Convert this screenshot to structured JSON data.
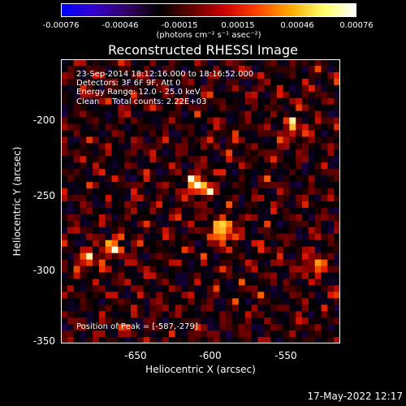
{
  "colorbar": {
    "ticks": [
      "-0.00076",
      "-0.00046",
      "-0.00015",
      "0.00015",
      "0.00046",
      "0.00076"
    ],
    "units": "(photons cm⁻² s⁻¹ asec⁻²)",
    "colors": [
      "#0000ff",
      "#3300cc",
      "#330066",
      "#000000",
      "#660000",
      "#cc0000",
      "#ff4400",
      "#ffaa00",
      "#ffff66",
      "#ffffff"
    ]
  },
  "info": {
    "line1": "23-Sep-2014 18:12:16.000 to 18:16:52.000",
    "line2": "Detectors: 3F 6F 9F, Att 0",
    "line3": "Energy Range: 12.0 - 25.0 keV",
    "line4": "Clean     Total counts: 2.22E+03"
  },
  "peak_label": "Position of Peak = [-587,-279]",
  "timestamp": "17-May-2022 12:17",
  "chart_data": {
    "type": "heatmap",
    "title": "Reconstructed RHESSI Image",
    "xlabel": "Heliocentric X (arcsec)",
    "ylabel": "Heliocentric Y (arcsec)",
    "xlim": [
      -695,
      -510
    ],
    "ylim": [
      -352,
      -165
    ],
    "x_ticks": [
      "-650",
      "-600",
      "-550"
    ],
    "x_tick_values": [
      -650,
      -600,
      -550
    ],
    "y_ticks": [
      "-200",
      "-250",
      "-300",
      "-350"
    ],
    "y_tick_values": [
      -200,
      -250,
      -300,
      -350
    ],
    "value_range": [
      -0.00076,
      0.00076
    ],
    "colormap": "blue-black-red-yellow-white",
    "peak_position": [
      -587,
      -279
    ],
    "bright_sources": [
      {
        "x": -587,
        "y": -279,
        "value": 0.00076
      },
      {
        "x": -603,
        "y": -248,
        "value": 0.00065
      },
      {
        "x": -660,
        "y": -288,
        "value": 0.00058
      },
      {
        "x": -676,
        "y": -297,
        "value": 0.0005
      },
      {
        "x": -540,
        "y": -212,
        "value": 0.0005
      },
      {
        "x": -527,
        "y": -300,
        "value": 0.0004
      }
    ]
  }
}
